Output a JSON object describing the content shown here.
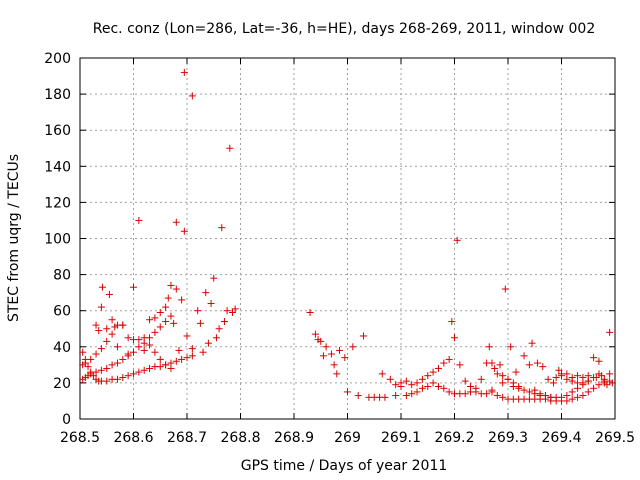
{
  "chart_data": {
    "type": "scatter",
    "title": "Rec. conz (Lon=286, Lat=-36, h=HE), days 268-269, 2011, window 002",
    "xlabel": "GPS time / Days of year 2011",
    "ylabel": "STEC from uqrg / TECUs",
    "xlim": [
      268.5,
      269.5
    ],
    "ylim": [
      0,
      200
    ],
    "xticks": [
      268.5,
      268.6,
      268.7,
      268.8,
      268.9,
      269.0,
      269.1,
      269.2,
      269.3,
      269.4,
      269.5
    ],
    "xtick_labels": [
      "268.5",
      "268.6",
      "268.7",
      "268.8",
      "268.9",
      "269",
      "269.1",
      "269.2",
      "269.3",
      "269.4",
      "269.5"
    ],
    "yticks": [
      0,
      20,
      40,
      60,
      80,
      100,
      120,
      140,
      160,
      180,
      200
    ],
    "ytick_labels": [
      "0",
      "20",
      "40",
      "60",
      "80",
      "100",
      "120",
      "140",
      "160",
      "180",
      "200"
    ],
    "grid": true,
    "marker": "+",
    "color": "#dd0000",
    "points": [
      [
        268.505,
        37
      ],
      [
        268.51,
        33
      ],
      [
        268.515,
        29
      ],
      [
        268.52,
        26
      ],
      [
        268.525,
        24
      ],
      [
        268.53,
        22
      ],
      [
        268.535,
        21
      ],
      [
        268.54,
        21
      ],
      [
        268.55,
        21
      ],
      [
        268.56,
        22
      ],
      [
        268.57,
        22
      ],
      [
        268.58,
        23
      ],
      [
        268.59,
        24
      ],
      [
        268.6,
        25
      ],
      [
        268.61,
        26
      ],
      [
        268.62,
        27
      ],
      [
        268.63,
        28
      ],
      [
        268.64,
        29
      ],
      [
        268.65,
        29
      ],
      [
        268.66,
        30
      ],
      [
        268.67,
        31
      ],
      [
        268.68,
        32
      ],
      [
        268.69,
        33
      ],
      [
        268.7,
        34
      ],
      [
        268.71,
        35
      ],
      [
        268.505,
        22
      ],
      [
        268.51,
        23
      ],
      [
        268.515,
        24
      ],
      [
        268.52,
        25
      ],
      [
        268.53,
        26
      ],
      [
        268.54,
        27
      ],
      [
        268.55,
        28
      ],
      [
        268.56,
        30
      ],
      [
        268.57,
        31
      ],
      [
        268.58,
        33
      ],
      [
        268.59,
        35
      ],
      [
        268.6,
        37
      ],
      [
        268.61,
        40
      ],
      [
        268.62,
        42
      ],
      [
        268.63,
        45
      ],
      [
        268.64,
        48
      ],
      [
        268.65,
        51
      ],
      [
        268.66,
        54
      ],
      [
        268.67,
        57
      ],
      [
        268.505,
        30
      ],
      [
        268.51,
        31
      ],
      [
        268.52,
        33
      ],
      [
        268.53,
        36
      ],
      [
        268.54,
        39
      ],
      [
        268.55,
        43
      ],
      [
        268.56,
        47
      ],
      [
        268.57,
        52
      ],
      [
        268.58,
        52
      ],
      [
        268.59,
        45
      ],
      [
        268.6,
        44
      ],
      [
        268.61,
        44
      ],
      [
        268.62,
        45
      ],
      [
        268.63,
        41
      ],
      [
        268.64,
        37
      ],
      [
        268.65,
        33
      ],
      [
        268.66,
        30
      ],
      [
        268.67,
        28
      ],
      [
        268.53,
        52
      ],
      [
        268.535,
        49
      ],
      [
        268.54,
        62
      ],
      [
        268.542,
        73
      ],
      [
        268.55,
        50
      ],
      [
        268.555,
        69
      ],
      [
        268.56,
        55
      ],
      [
        268.565,
        51
      ],
      [
        268.57,
        40
      ],
      [
        268.58,
        52
      ],
      [
        268.59,
        36
      ],
      [
        268.6,
        73
      ],
      [
        268.61,
        110
      ],
      [
        268.62,
        38
      ],
      [
        268.63,
        55
      ],
      [
        268.64,
        56
      ],
      [
        268.65,
        59
      ],
      [
        268.66,
        62
      ],
      [
        268.665,
        67
      ],
      [
        268.67,
        74
      ],
      [
        268.675,
        53
      ],
      [
        268.68,
        72
      ],
      [
        268.685,
        38
      ],
      [
        268.69,
        66
      ],
      [
        268.695,
        104
      ],
      [
        268.68,
        109
      ],
      [
        268.695,
        192
      ],
      [
        268.71,
        179
      ],
      [
        268.7,
        46
      ],
      [
        268.71,
        39
      ],
      [
        268.72,
        60
      ],
      [
        268.725,
        53
      ],
      [
        268.73,
        37
      ],
      [
        268.735,
        70
      ],
      [
        268.74,
        42
      ],
      [
        268.745,
        64
      ],
      [
        268.75,
        78
      ],
      [
        268.755,
        45
      ],
      [
        268.76,
        50
      ],
      [
        268.765,
        106
      ],
      [
        268.77,
        54
      ],
      [
        268.775,
        60
      ],
      [
        268.78,
        150
      ],
      [
        268.785,
        59
      ],
      [
        268.79,
        61
      ],
      [
        268.93,
        59
      ],
      [
        268.94,
        47
      ],
      [
        268.945,
        44
      ],
      [
        268.95,
        43
      ],
      [
        268.955,
        35
      ],
      [
        268.96,
        40
      ],
      [
        268.97,
        36
      ],
      [
        268.975,
        30
      ],
      [
        268.98,
        25
      ],
      [
        268.985,
        38
      ],
      [
        268.995,
        34
      ],
      [
        269.0,
        15
      ],
      [
        269.01,
        40
      ],
      [
        269.02,
        13
      ],
      [
        269.03,
        46
      ],
      [
        269.04,
        12
      ],
      [
        269.05,
        12
      ],
      [
        269.06,
        12
      ],
      [
        269.065,
        25
      ],
      [
        269.07,
        12
      ],
      [
        269.08,
        22
      ],
      [
        269.09,
        13
      ],
      [
        269.1,
        18
      ],
      [
        269.11,
        13
      ],
      [
        269.12,
        14
      ],
      [
        269.13,
        15
      ],
      [
        269.14,
        17
      ],
      [
        269.15,
        18
      ],
      [
        269.09,
        19
      ],
      [
        269.1,
        20
      ],
      [
        269.11,
        21
      ],
      [
        269.12,
        19
      ],
      [
        269.13,
        20
      ],
      [
        269.14,
        22
      ],
      [
        269.15,
        24
      ],
      [
        269.16,
        26
      ],
      [
        269.17,
        28
      ],
      [
        269.18,
        31
      ],
      [
        269.19,
        33
      ],
      [
        269.195,
        54
      ],
      [
        269.2,
        45
      ],
      [
        269.205,
        99
      ],
      [
        269.21,
        30
      ],
      [
        269.22,
        21
      ],
      [
        269.23,
        18
      ],
      [
        269.24,
        15
      ],
      [
        269.25,
        14
      ],
      [
        269.26,
        14
      ],
      [
        269.27,
        15
      ],
      [
        269.16,
        20
      ],
      [
        269.17,
        18
      ],
      [
        269.18,
        17
      ],
      [
        269.19,
        15
      ],
      [
        269.2,
        14
      ],
      [
        269.21,
        14
      ],
      [
        269.22,
        14
      ],
      [
        269.23,
        15
      ],
      [
        269.24,
        17
      ],
      [
        269.25,
        22
      ],
      [
        269.26,
        31
      ],
      [
        269.265,
        40
      ],
      [
        269.27,
        31
      ],
      [
        269.275,
        28
      ],
      [
        269.28,
        25
      ],
      [
        269.285,
        30
      ],
      [
        269.29,
        20
      ],
      [
        269.295,
        72
      ],
      [
        269.3,
        22
      ],
      [
        269.305,
        40
      ],
      [
        269.31,
        18
      ],
      [
        269.315,
        26
      ],
      [
        269.32,
        17
      ],
      [
        269.33,
        35
      ],
      [
        269.34,
        30
      ],
      [
        269.345,
        42
      ],
      [
        269.35,
        16
      ],
      [
        269.36,
        14
      ],
      [
        269.37,
        13
      ],
      [
        269.38,
        12
      ],
      [
        269.27,
        16
      ],
      [
        269.28,
        13
      ],
      [
        269.29,
        12
      ],
      [
        269.3,
        11
      ],
      [
        269.31,
        11
      ],
      [
        269.32,
        11
      ],
      [
        269.33,
        11
      ],
      [
        269.34,
        11
      ],
      [
        269.35,
        11
      ],
      [
        269.36,
        11
      ],
      [
        269.37,
        11
      ],
      [
        269.38,
        10
      ],
      [
        269.39,
        10
      ],
      [
        269.4,
        10
      ],
      [
        269.41,
        10
      ],
      [
        269.42,
        11
      ],
      [
        269.43,
        12
      ],
      [
        269.44,
        13
      ],
      [
        269.45,
        15
      ],
      [
        269.46,
        17
      ],
      [
        269.47,
        19
      ],
      [
        269.48,
        20
      ],
      [
        269.49,
        21
      ],
      [
        269.29,
        24
      ],
      [
        269.3,
        22
      ],
      [
        269.31,
        20
      ],
      [
        269.32,
        18
      ],
      [
        269.33,
        16
      ],
      [
        269.34,
        15
      ],
      [
        269.35,
        14
      ],
      [
        269.36,
        13
      ],
      [
        269.37,
        13
      ],
      [
        269.38,
        12
      ],
      [
        269.39,
        12
      ],
      [
        269.4,
        12
      ],
      [
        269.41,
        13
      ],
      [
        269.42,
        15
      ],
      [
        269.43,
        17
      ],
      [
        269.44,
        19
      ],
      [
        269.45,
        21
      ],
      [
        269.46,
        23
      ],
      [
        269.47,
        25
      ],
      [
        269.48,
        22
      ],
      [
        269.49,
        25
      ],
      [
        269.39,
        23
      ],
      [
        269.4,
        24
      ],
      [
        269.41,
        22
      ],
      [
        269.42,
        21
      ],
      [
        269.43,
        20
      ],
      [
        269.44,
        20
      ],
      [
        269.45,
        21
      ],
      [
        269.46,
        34
      ],
      [
        269.465,
        23
      ],
      [
        269.47,
        32
      ],
      [
        269.475,
        24
      ],
      [
        269.48,
        21
      ],
      [
        269.485,
        19
      ],
      [
        269.49,
        48
      ],
      [
        269.495,
        20
      ],
      [
        269.45,
        24
      ],
      [
        269.44,
        23
      ],
      [
        269.43,
        24
      ],
      [
        269.42,
        23
      ],
      [
        269.41,
        25
      ],
      [
        269.4,
        25
      ],
      [
        269.395,
        27
      ],
      [
        269.385,
        20
      ],
      [
        269.375,
        22
      ],
      [
        269.365,
        29
      ],
      [
        269.355,
        31
      ]
    ]
  }
}
